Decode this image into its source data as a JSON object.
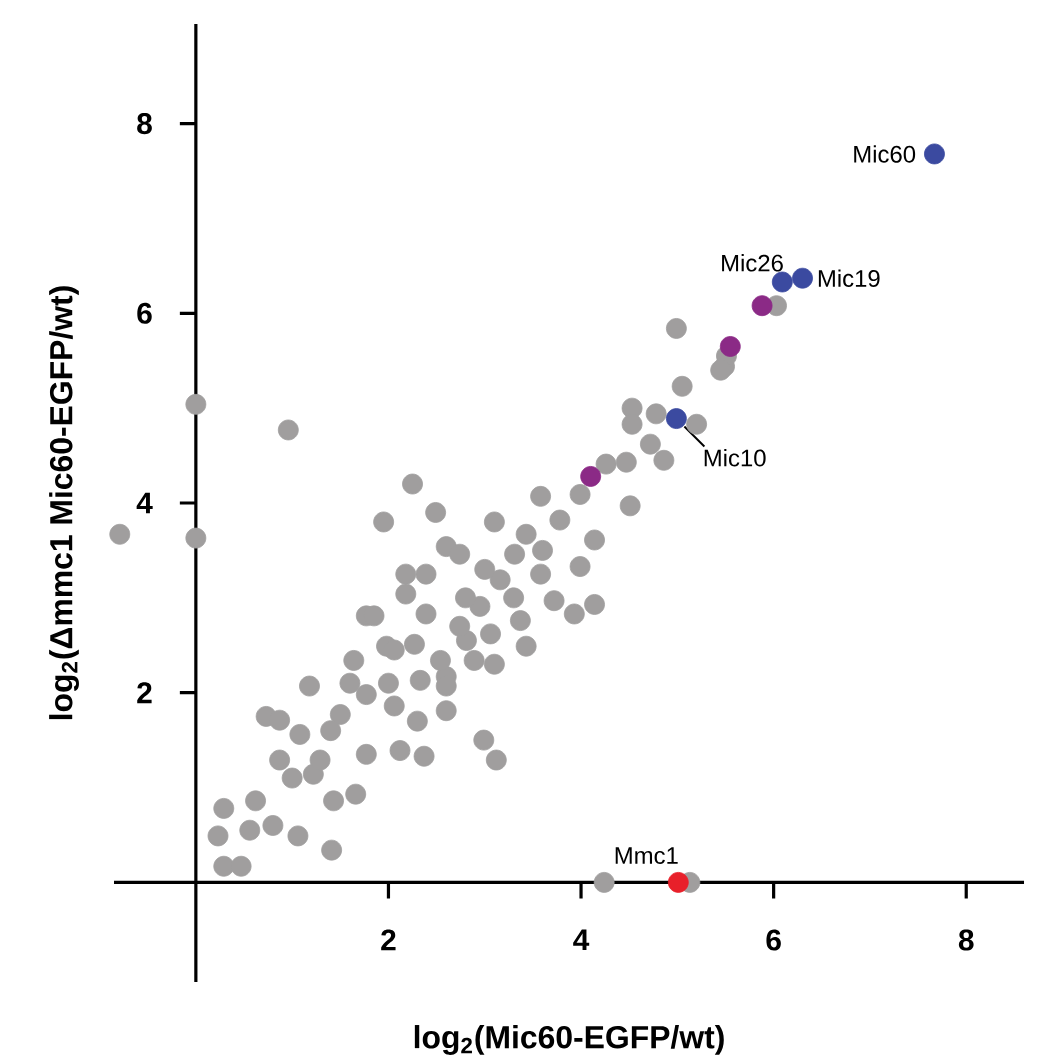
{
  "chart_data": {
    "type": "scatter",
    "xlabel": "log$_{2}$(Mic60-EGFP/wt)",
    "ylabel": "log$_{2}$(Δmmc1 Mic60-EGFP/wt)",
    "xlim": [
      -0.85,
      8.6
    ],
    "ylim": [
      -1.05,
      9.05
    ],
    "xticks": [
      2,
      4,
      6,
      8
    ],
    "yticks": [
      2,
      4,
      6,
      8
    ],
    "marker": "circle",
    "series": [
      {
        "color": "#a09e9e",
        "x": [
          -0.79,
          0,
          0,
          0.96,
          2.25,
          1.95,
          2.49,
          3.1,
          0.29,
          0.47,
          0.23,
          0.29,
          0.56,
          1.41,
          1.06,
          1.66,
          0.73,
          0.62,
          0.87,
          1.22,
          1.43,
          1.18,
          1.77,
          2.18,
          2.39,
          2.18,
          2.39,
          2.6,
          2.99,
          3.12,
          2.37,
          2.12,
          2.6,
          2.6,
          1.98,
          1.64,
          1.5,
          1.77,
          1.08,
          0.87,
          2.06,
          1.77,
          1.29,
          2.81,
          2.89,
          2.74,
          4.99,
          5.49,
          5.05,
          4.53,
          4.53,
          4.78,
          5.2,
          4.72,
          4.86,
          4.47,
          4.26,
          4.51,
          3.58,
          3.99,
          3.43,
          4.14,
          3.78,
          3.31,
          3.99,
          3.58,
          2.74,
          3.16,
          4.14,
          3.93,
          3.72,
          3.37,
          2.95,
          3.06,
          3.43,
          3.1,
          2.54,
          2.27,
          2.06,
          1.85,
          2.6,
          2.33,
          6.03,
          5.51,
          5.45,
          4.24,
          5.13,
          1.4,
          1.6,
          2.0,
          2.3,
          1.0,
          0.8,
          3.3,
          3.6,
          3.0,
          2.8
        ],
        "values": [
          3.67,
          5.04,
          3.63,
          4.77,
          4.2,
          3.8,
          3.9,
          3.8,
          0.17,
          0.17,
          0.49,
          0.78,
          0.55,
          0.34,
          0.49,
          0.93,
          1.75,
          0.86,
          1.29,
          1.14,
          0.86,
          2.07,
          2.81,
          3.25,
          3.25,
          3.04,
          2.83,
          3.54,
          1.5,
          1.29,
          1.33,
          1.39,
          1.81,
          2.17,
          2.49,
          2.34,
          1.77,
          1.98,
          1.56,
          1.71,
          1.86,
          1.35,
          1.29,
          2.55,
          2.34,
          2.7,
          5.84,
          5.44,
          5.23,
          5.0,
          4.83,
          4.94,
          4.83,
          4.62,
          4.45,
          4.43,
          4.41,
          3.97,
          4.07,
          4.09,
          3.67,
          3.61,
          3.82,
          3.46,
          3.33,
          3.25,
          3.46,
          3.19,
          2.93,
          2.83,
          2.97,
          2.76,
          2.91,
          2.62,
          2.49,
          2.3,
          2.34,
          2.51,
          2.45,
          2.81,
          2.07,
          2.13,
          6.08,
          5.55,
          5.4,
          0,
          0,
          1.6,
          2.1,
          2.1,
          1.7,
          1.1,
          0.6,
          3.0,
          3.5,
          3.3,
          3.0
        ]
      },
      {
        "color": "#8b2a86",
        "x": [
          4.1,
          5.88,
          5.55
        ],
        "values": [
          4.28,
          6.08,
          5.65
        ]
      },
      {
        "color": "#3b4aa0",
        "x": [
          7.67,
          6.09,
          6.3,
          4.99
        ],
        "values": [
          7.68,
          6.33,
          6.37,
          4.89
        ]
      },
      {
        "color": "#e8202a",
        "x": [
          5.01
        ],
        "values": [
          0
        ]
      }
    ],
    "annotations": [
      {
        "text": "Mic60",
        "x": 7.67,
        "y": 7.68
      },
      {
        "text": "Mic26",
        "x": 6.09,
        "y": 6.33
      },
      {
        "text": "Mic19",
        "x": 6.3,
        "y": 6.37
      },
      {
        "text": "Mic10",
        "x": 4.99,
        "y": 4.89
      },
      {
        "text": "Mmc1",
        "x": 5.01,
        "y": 0
      }
    ]
  }
}
